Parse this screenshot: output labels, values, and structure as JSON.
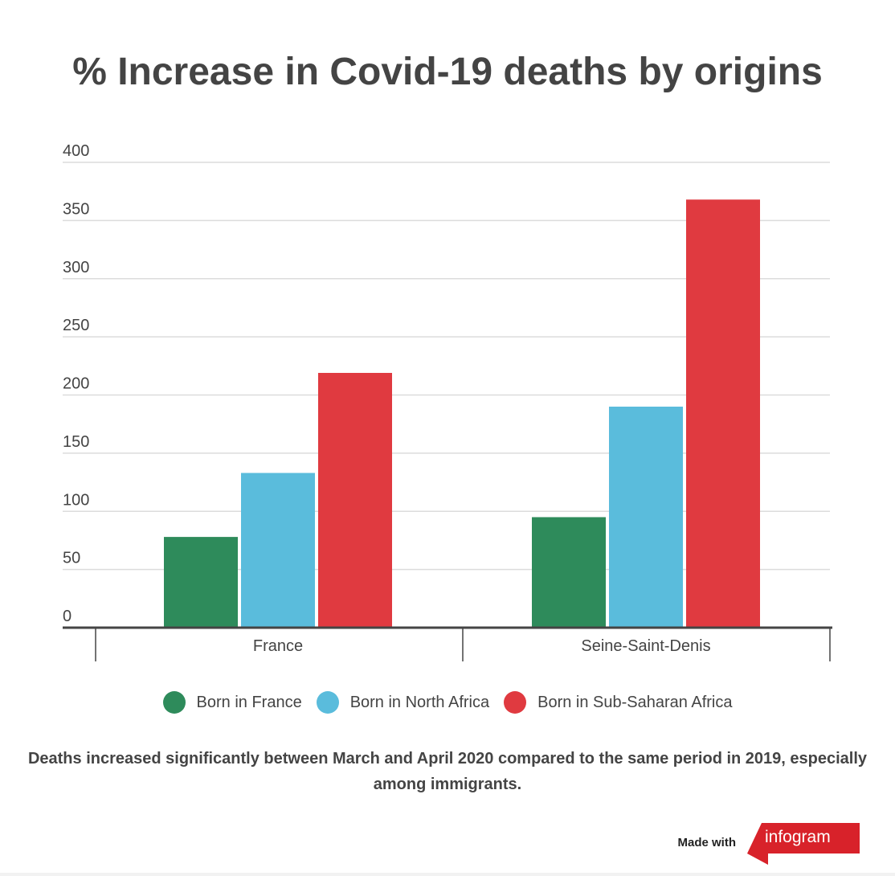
{
  "chart_data": {
    "type": "bar",
    "title": "% Increase in Covid-19 deaths by origins",
    "categories": [
      "France",
      "Seine-Saint-Denis"
    ],
    "series": [
      {
        "name": "Born in France",
        "color": "#2e8b5b",
        "values": [
          78,
          95
        ]
      },
      {
        "name": "Born in North Africa",
        "color": "#5abcdc",
        "values": [
          133,
          190
        ]
      },
      {
        "name": "Born in Sub-Saharan Africa",
        "color": "#e03a40",
        "values": [
          219,
          368
        ]
      }
    ],
    "ylim": [
      0,
      400
    ],
    "yticks": [
      "0",
      "50",
      "100",
      "150",
      "200",
      "250",
      "300",
      "350",
      "400"
    ],
    "ytick_values": [
      0,
      50,
      100,
      150,
      200,
      250,
      300,
      350,
      400
    ],
    "grid": true,
    "legend": "bottom-center",
    "xlabel": "",
    "ylabel": ""
  },
  "caption": "Deaths increased significantly between March and April 2020 compared to the same period in 2019, especially among immigrants.",
  "footer": {
    "made_with": "Made with",
    "brand": "infogram",
    "brand_color": "#d8222a"
  }
}
